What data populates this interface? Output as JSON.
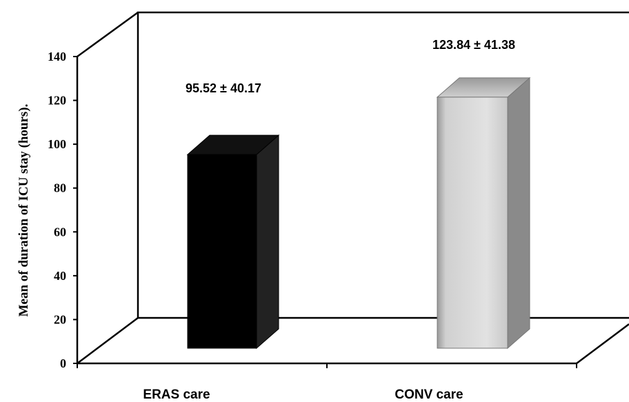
{
  "chart_data": {
    "type": "bar",
    "categories": [
      "ERAS care",
      "CONV care"
    ],
    "values": [
      95.52,
      123.84
    ],
    "data_labels": [
      "95.52 ± 40.17",
      "123.84 ± 41.38"
    ],
    "ylabel": "Mean of duration of ICU stay (hours).",
    "ylim": [
      0,
      140
    ],
    "yticks": [
      "0",
      "20",
      "40",
      "60",
      "80",
      "100",
      "120",
      "140"
    ],
    "grid": false,
    "colors": [
      "#000000",
      "#d6d6d6"
    ]
  }
}
